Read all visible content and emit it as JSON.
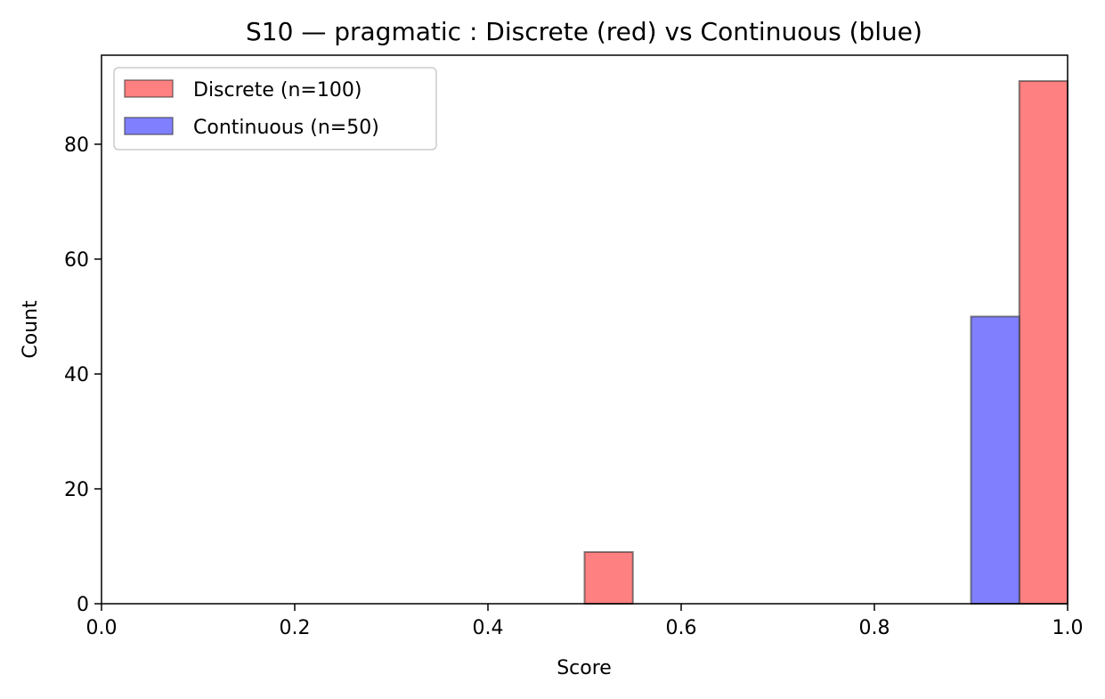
{
  "chart_data": {
    "type": "bar",
    "title": "S10 — pragmatic : Discrete (red) vs Continuous (blue)",
    "xlabel": "Score",
    "ylabel": "Count",
    "xlim": [
      0.0,
      1.0
    ],
    "ylim": [
      0,
      95.5
    ],
    "xticks": [
      "0.0",
      "0.2",
      "0.4",
      "0.6",
      "0.8",
      "1.0"
    ],
    "xtick_values": [
      0.0,
      0.2,
      0.4,
      0.6,
      0.8,
      1.0
    ],
    "yticks": [
      "0",
      "20",
      "40",
      "60",
      "80"
    ],
    "ytick_values": [
      0,
      20,
      40,
      60,
      80
    ],
    "grid": false,
    "legend_position": "top-left",
    "series": [
      {
        "name": "Discrete (n=100)",
        "color": "#ff8080",
        "bins": [
          {
            "x0": 0.5,
            "x1": 0.55,
            "count": 9
          },
          {
            "x0": 0.95,
            "x1": 1.0,
            "count": 91
          }
        ]
      },
      {
        "name": "Continuous (n=50)",
        "color": "#8080ff",
        "bins": [
          {
            "x0": 0.9,
            "x1": 0.95,
            "count": 50
          }
        ]
      }
    ]
  }
}
